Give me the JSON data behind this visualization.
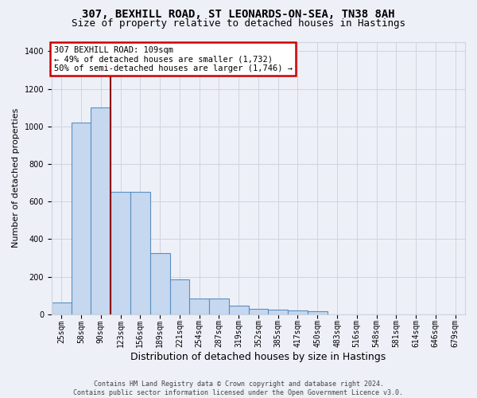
{
  "title_line1": "307, BEXHILL ROAD, ST LEONARDS-ON-SEA, TN38 8AH",
  "title_line2": "Size of property relative to detached houses in Hastings",
  "xlabel": "Distribution of detached houses by size in Hastings",
  "ylabel": "Number of detached properties",
  "categories": [
    "25sqm",
    "58sqm",
    "90sqm",
    "123sqm",
    "156sqm",
    "189sqm",
    "221sqm",
    "254sqm",
    "287sqm",
    "319sqm",
    "352sqm",
    "385sqm",
    "417sqm",
    "450sqm",
    "483sqm",
    "516sqm",
    "548sqm",
    "581sqm",
    "614sqm",
    "646sqm",
    "679sqm"
  ],
  "values": [
    65,
    1020,
    1100,
    650,
    650,
    325,
    185,
    85,
    85,
    45,
    28,
    25,
    20,
    15,
    0,
    0,
    0,
    0,
    0,
    0,
    0
  ],
  "bar_color": "#c5d8ef",
  "bar_edge_color": "#5a8fc0",
  "grid_color": "#d0d4e0",
  "bg_color": "#eef0f8",
  "vline_color": "#8b0000",
  "annotation_text": "307 BEXHILL ROAD: 109sqm\n← 49% of detached houses are smaller (1,732)\n50% of semi-detached houses are larger (1,746) →",
  "annotation_box_facecolor": "#ffffff",
  "annotation_box_edgecolor": "#cc0000",
  "ylim": [
    0,
    1450
  ],
  "yticks": [
    0,
    200,
    400,
    600,
    800,
    1000,
    1200,
    1400
  ],
  "vline_pos": 2.5,
  "footer": "Contains HM Land Registry data © Crown copyright and database right 2024.\nContains public sector information licensed under the Open Government Licence v3.0.",
  "title_fontsize": 10,
  "subtitle_fontsize": 9,
  "xlabel_fontsize": 9,
  "ylabel_fontsize": 8,
  "tick_fontsize": 7,
  "annotation_fontsize": 7.5,
  "footer_fontsize": 6
}
